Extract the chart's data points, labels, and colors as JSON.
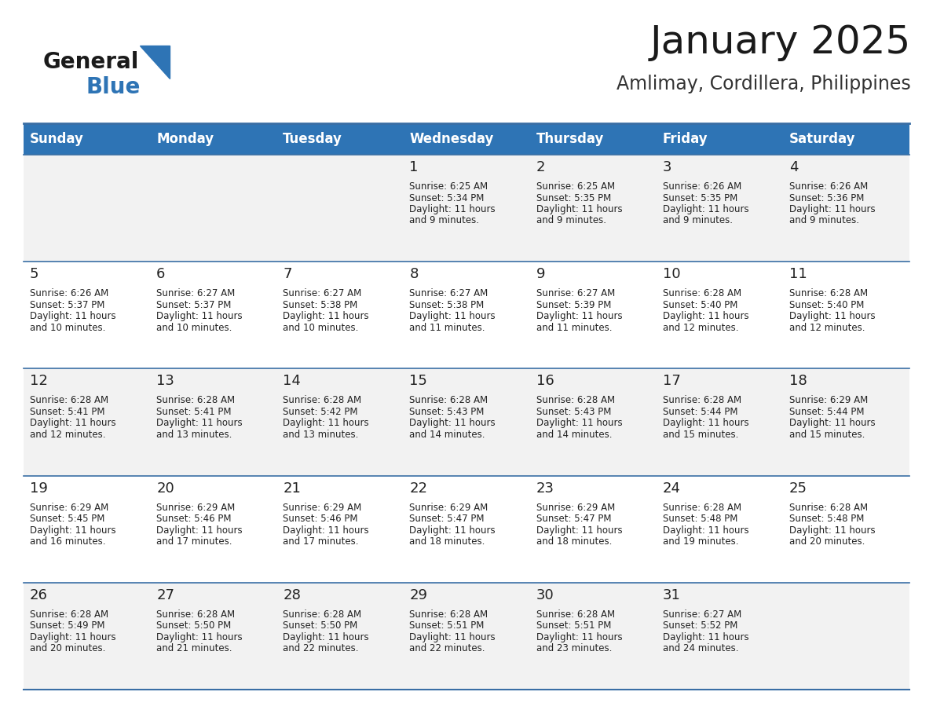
{
  "title": "January 2025",
  "subtitle": "Amlimay, Cordillera, Philippines",
  "header_color": "#2e74b5",
  "header_text_color": "#ffffff",
  "row_odd_color": "#f2f2f2",
  "row_even_color": "#ffffff",
  "border_color": "#3a6ea5",
  "text_color": "#222222",
  "day_names": [
    "Sunday",
    "Monday",
    "Tuesday",
    "Wednesday",
    "Thursday",
    "Friday",
    "Saturday"
  ],
  "title_fontsize": 36,
  "subtitle_fontsize": 17,
  "header_fontsize": 12,
  "day_num_fontsize": 13,
  "cell_text_fontsize": 8.5,
  "days": [
    {
      "day": 1,
      "col": 3,
      "row": 0,
      "sunrise": "6:25 AM",
      "sunset": "5:34 PM",
      "daylight": "11 hours and 9 minutes"
    },
    {
      "day": 2,
      "col": 4,
      "row": 0,
      "sunrise": "6:25 AM",
      "sunset": "5:35 PM",
      "daylight": "11 hours and 9 minutes"
    },
    {
      "day": 3,
      "col": 5,
      "row": 0,
      "sunrise": "6:26 AM",
      "sunset": "5:35 PM",
      "daylight": "11 hours and 9 minutes"
    },
    {
      "day": 4,
      "col": 6,
      "row": 0,
      "sunrise": "6:26 AM",
      "sunset": "5:36 PM",
      "daylight": "11 hours and 9 minutes"
    },
    {
      "day": 5,
      "col": 0,
      "row": 1,
      "sunrise": "6:26 AM",
      "sunset": "5:37 PM",
      "daylight": "11 hours and 10 minutes"
    },
    {
      "day": 6,
      "col": 1,
      "row": 1,
      "sunrise": "6:27 AM",
      "sunset": "5:37 PM",
      "daylight": "11 hours and 10 minutes"
    },
    {
      "day": 7,
      "col": 2,
      "row": 1,
      "sunrise": "6:27 AM",
      "sunset": "5:38 PM",
      "daylight": "11 hours and 10 minutes"
    },
    {
      "day": 8,
      "col": 3,
      "row": 1,
      "sunrise": "6:27 AM",
      "sunset": "5:38 PM",
      "daylight": "11 hours and 11 minutes"
    },
    {
      "day": 9,
      "col": 4,
      "row": 1,
      "sunrise": "6:27 AM",
      "sunset": "5:39 PM",
      "daylight": "11 hours and 11 minutes"
    },
    {
      "day": 10,
      "col": 5,
      "row": 1,
      "sunrise": "6:28 AM",
      "sunset": "5:40 PM",
      "daylight": "11 hours and 12 minutes"
    },
    {
      "day": 11,
      "col": 6,
      "row": 1,
      "sunrise": "6:28 AM",
      "sunset": "5:40 PM",
      "daylight": "11 hours and 12 minutes"
    },
    {
      "day": 12,
      "col": 0,
      "row": 2,
      "sunrise": "6:28 AM",
      "sunset": "5:41 PM",
      "daylight": "11 hours and 12 minutes"
    },
    {
      "day": 13,
      "col": 1,
      "row": 2,
      "sunrise": "6:28 AM",
      "sunset": "5:41 PM",
      "daylight": "11 hours and 13 minutes"
    },
    {
      "day": 14,
      "col": 2,
      "row": 2,
      "sunrise": "6:28 AM",
      "sunset": "5:42 PM",
      "daylight": "11 hours and 13 minutes"
    },
    {
      "day": 15,
      "col": 3,
      "row": 2,
      "sunrise": "6:28 AM",
      "sunset": "5:43 PM",
      "daylight": "11 hours and 14 minutes"
    },
    {
      "day": 16,
      "col": 4,
      "row": 2,
      "sunrise": "6:28 AM",
      "sunset": "5:43 PM",
      "daylight": "11 hours and 14 minutes"
    },
    {
      "day": 17,
      "col": 5,
      "row": 2,
      "sunrise": "6:28 AM",
      "sunset": "5:44 PM",
      "daylight": "11 hours and 15 minutes"
    },
    {
      "day": 18,
      "col": 6,
      "row": 2,
      "sunrise": "6:29 AM",
      "sunset": "5:44 PM",
      "daylight": "11 hours and 15 minutes"
    },
    {
      "day": 19,
      "col": 0,
      "row": 3,
      "sunrise": "6:29 AM",
      "sunset": "5:45 PM",
      "daylight": "11 hours and 16 minutes"
    },
    {
      "day": 20,
      "col": 1,
      "row": 3,
      "sunrise": "6:29 AM",
      "sunset": "5:46 PM",
      "daylight": "11 hours and 17 minutes"
    },
    {
      "day": 21,
      "col": 2,
      "row": 3,
      "sunrise": "6:29 AM",
      "sunset": "5:46 PM",
      "daylight": "11 hours and 17 minutes"
    },
    {
      "day": 22,
      "col": 3,
      "row": 3,
      "sunrise": "6:29 AM",
      "sunset": "5:47 PM",
      "daylight": "11 hours and 18 minutes"
    },
    {
      "day": 23,
      "col": 4,
      "row": 3,
      "sunrise": "6:29 AM",
      "sunset": "5:47 PM",
      "daylight": "11 hours and 18 minutes"
    },
    {
      "day": 24,
      "col": 5,
      "row": 3,
      "sunrise": "6:28 AM",
      "sunset": "5:48 PM",
      "daylight": "11 hours and 19 minutes"
    },
    {
      "day": 25,
      "col": 6,
      "row": 3,
      "sunrise": "6:28 AM",
      "sunset": "5:48 PM",
      "daylight": "11 hours and 20 minutes"
    },
    {
      "day": 26,
      "col": 0,
      "row": 4,
      "sunrise": "6:28 AM",
      "sunset": "5:49 PM",
      "daylight": "11 hours and 20 minutes"
    },
    {
      "day": 27,
      "col": 1,
      "row": 4,
      "sunrise": "6:28 AM",
      "sunset": "5:50 PM",
      "daylight": "11 hours and 21 minutes"
    },
    {
      "day": 28,
      "col": 2,
      "row": 4,
      "sunrise": "6:28 AM",
      "sunset": "5:50 PM",
      "daylight": "11 hours and 22 minutes"
    },
    {
      "day": 29,
      "col": 3,
      "row": 4,
      "sunrise": "6:28 AM",
      "sunset": "5:51 PM",
      "daylight": "11 hours and 22 minutes"
    },
    {
      "day": 30,
      "col": 4,
      "row": 4,
      "sunrise": "6:28 AM",
      "sunset": "5:51 PM",
      "daylight": "11 hours and 23 minutes"
    },
    {
      "day": 31,
      "col": 5,
      "row": 4,
      "sunrise": "6:27 AM",
      "sunset": "5:52 PM",
      "daylight": "11 hours and 24 minutes"
    }
  ]
}
